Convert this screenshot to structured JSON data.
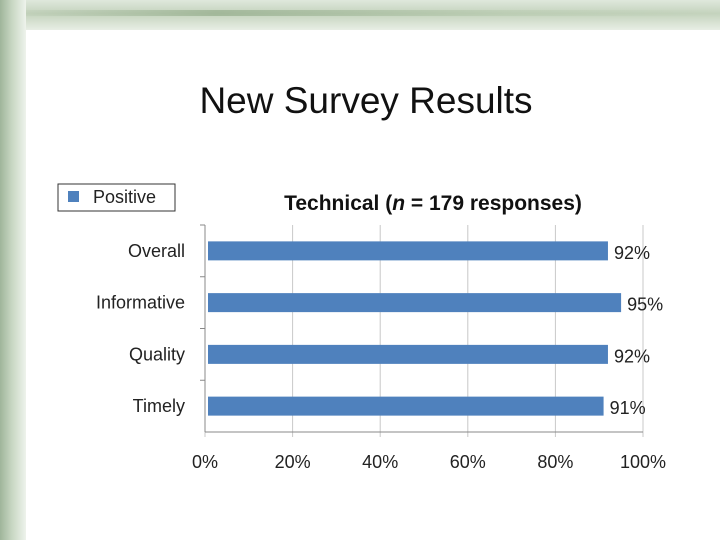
{
  "slide": {
    "title": "New Survey Results"
  },
  "chart_data": {
    "type": "bar",
    "orientation": "horizontal",
    "title_parts": [
      "Technical (",
      "n",
      " = 179 responses)"
    ],
    "legend": {
      "entries": [
        "Positive"
      ],
      "placement": "top-left"
    },
    "categories": [
      "Overall",
      "Informative",
      "Quality",
      "Timely"
    ],
    "series": [
      {
        "name": "Positive",
        "values": [
          92,
          95,
          92,
          91
        ],
        "labels": [
          "92%",
          "95%",
          "92%",
          "91%"
        ],
        "color": "#4f81bd"
      }
    ],
    "xlim": [
      0,
      100
    ],
    "xticks": [
      0,
      20,
      40,
      60,
      80,
      100
    ],
    "xtick_labels": [
      "0%",
      "20%",
      "40%",
      "60%",
      "80%",
      "100%"
    ],
    "grid": true
  }
}
